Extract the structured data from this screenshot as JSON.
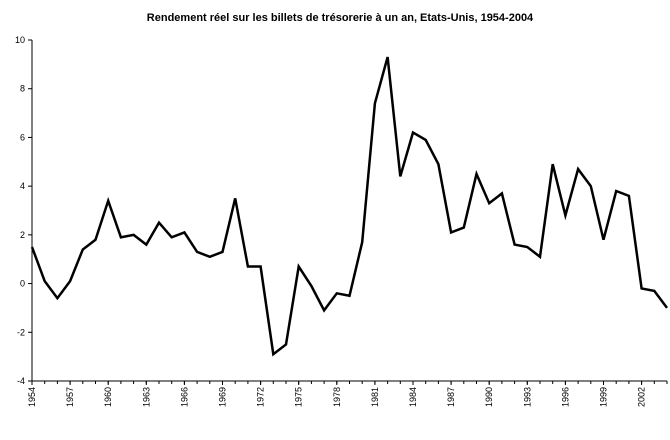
{
  "chart_data": {
    "type": "line",
    "title": "Rendement réel sur les billets de trésorerie à un an, Etats-Unis, 1954-2004",
    "x": [
      1954,
      1955,
      1956,
      1957,
      1958,
      1959,
      1960,
      1961,
      1962,
      1963,
      1964,
      1965,
      1966,
      1967,
      1968,
      1969,
      1970,
      1971,
      1972,
      1973,
      1974,
      1975,
      1976,
      1977,
      1978,
      1979,
      1980,
      1981,
      1982,
      1983,
      1984,
      1985,
      1986,
      1987,
      1988,
      1989,
      1990,
      1991,
      1992,
      1993,
      1994,
      1995,
      1996,
      1997,
      1998,
      1999,
      2000,
      2001,
      2002,
      2003,
      2004
    ],
    "series": [
      {
        "color": "#000000",
        "values": [
          1.5,
          0.1,
          -0.6,
          0.1,
          1.4,
          1.8,
          3.4,
          1.9,
          2.0,
          1.6,
          2.5,
          1.9,
          2.1,
          1.3,
          1.1,
          1.3,
          3.5,
          0.7,
          0.7,
          -2.9,
          -2.5,
          0.7,
          -0.1,
          -1.1,
          -0.4,
          -0.5,
          1.7,
          7.4,
          9.3,
          4.4,
          6.2,
          5.9,
          4.9,
          2.1,
          2.3,
          4.5,
          3.3,
          3.7,
          1.6,
          1.5,
          1.1,
          4.9,
          2.8,
          4.7,
          4.0,
          1.8,
          3.8,
          3.6,
          -0.2,
          -0.3,
          -1.0
        ]
      }
    ],
    "xlim": [
      1954,
      2004
    ],
    "xticks": [
      1954,
      1957,
      1960,
      1963,
      1966,
      1969,
      1972,
      1975,
      1978,
      1981,
      1984,
      1987,
      1990,
      1993,
      1996,
      1999,
      2002
    ],
    "ylim": [
      -4,
      10
    ],
    "yticks": [
      -4,
      -2,
      0,
      2,
      4,
      6,
      8,
      10
    ],
    "grid": false
  }
}
